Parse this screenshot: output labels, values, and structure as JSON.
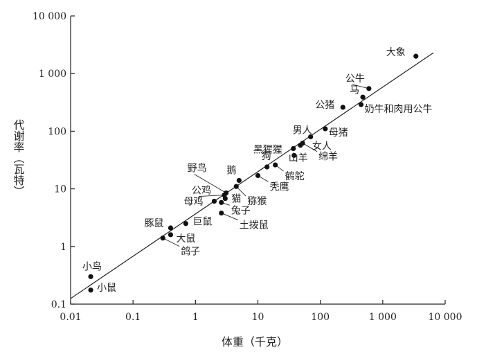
{
  "chart_data": {
    "type": "scatter",
    "xscale": "log",
    "yscale": "log",
    "xlim": [
      0.01,
      10000
    ],
    "ylim": [
      0.1,
      10000
    ],
    "xlabel": "体重（千克）",
    "ylabel": "代谢率（瓦特）",
    "x_ticks": [
      {
        "value": 0.01,
        "label": "0.01"
      },
      {
        "value": 0.1,
        "label": "0.1"
      },
      {
        "value": 1,
        "label": "1"
      },
      {
        "value": 10,
        "label": "10"
      },
      {
        "value": 100,
        "label": "100"
      },
      {
        "value": 1000,
        "label": "1 000"
      },
      {
        "value": 10000,
        "label": "10 000"
      }
    ],
    "y_ticks": [
      {
        "value": 0.1,
        "label": "0.1"
      },
      {
        "value": 1,
        "label": "1"
      },
      {
        "value": 10,
        "label": "10"
      },
      {
        "value": 100,
        "label": "100"
      },
      {
        "value": 1000,
        "label": "1 000"
      },
      {
        "value": 10000,
        "label": "10 000"
      }
    ],
    "fit_line": {
      "x": [
        0.01,
        6500
      ],
      "y": [
        0.125,
        2300
      ]
    },
    "points": [
      {
        "name": "小鸟",
        "x": 0.021,
        "y": 0.3
      },
      {
        "name": "小鼠",
        "x": 0.021,
        "y": 0.175
      },
      {
        "name": "鸽子",
        "x": 0.3,
        "y": 1.4
      },
      {
        "name": "大鼠",
        "x": 0.4,
        "y": 1.6
      },
      {
        "name": "豚鼠",
        "x": 0.4,
        "y": 2.1
      },
      {
        "name": "巨鼠",
        "x": 0.7,
        "y": 2.5
      },
      {
        "name": "土拨鼠",
        "x": 2.6,
        "y": 3.8
      },
      {
        "name": "兔子",
        "x": 2.6,
        "y": 5.8
      },
      {
        "name": "母鸡",
        "x": 2.0,
        "y": 6.1
      },
      {
        "name": "猫",
        "x": 3.0,
        "y": 6.8
      },
      {
        "name": "公鸡",
        "x": 2.9,
        "y": 7.8
      },
      {
        "name": "野鸟",
        "x": 3.1,
        "y": 8.5
      },
      {
        "name": "猕猴",
        "x": 4.5,
        "y": 11
      },
      {
        "name": "鹅",
        "x": 5.0,
        "y": 14
      },
      {
        "name": "秃鹰",
        "x": 10,
        "y": 17
      },
      {
        "name": "狗",
        "x": 14,
        "y": 24
      },
      {
        "name": "鹤鸵",
        "x": 19,
        "y": 26
      },
      {
        "name": "山羊",
        "x": 38,
        "y": 38
      },
      {
        "name": "黑猩猩",
        "x": 37,
        "y": 50
      },
      {
        "name": "女人",
        "x": 48,
        "y": 57
      },
      {
        "name": "绵羊",
        "x": 52,
        "y": 62
      },
      {
        "name": "男人",
        "x": 70,
        "y": 80
      },
      {
        "name": "母猪",
        "x": 120,
        "y": 110
      },
      {
        "name": "公猪",
        "x": 230,
        "y": 260
      },
      {
        "name": "奶牛和肉用公牛",
        "x": 450,
        "y": 290
      },
      {
        "name": "马",
        "x": 480,
        "y": 390
      },
      {
        "name": "公牛",
        "x": 600,
        "y": 550
      },
      {
        "name": "大象",
        "x": 3400,
        "y": 2000
      }
    ]
  }
}
